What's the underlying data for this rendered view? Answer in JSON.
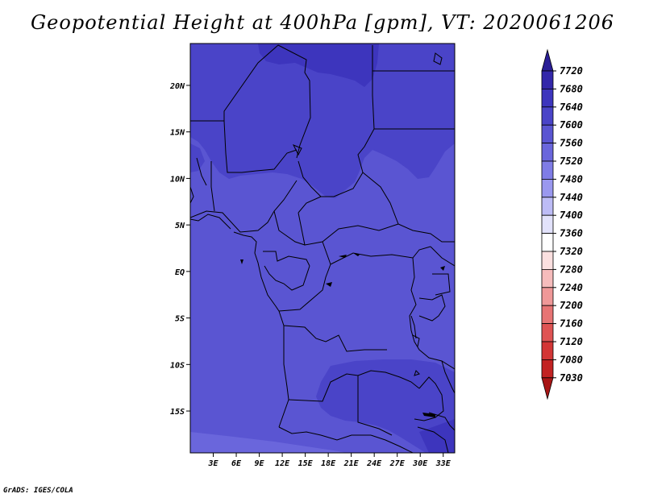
{
  "title": "Geopotential Height at 400hPa [gpm], VT: 2020061206",
  "credit": "GrADS: IGES/COLA",
  "map": {
    "lon_range": [
      0,
      34.5
    ],
    "lat_range": [
      -19.5,
      24.5
    ],
    "x_ticks": [
      {
        "value": 3,
        "label": "3E"
      },
      {
        "value": 6,
        "label": "6E"
      },
      {
        "value": 9,
        "label": "9E"
      },
      {
        "value": 12,
        "label": "12E"
      },
      {
        "value": 15,
        "label": "15E"
      },
      {
        "value": 18,
        "label": "18E"
      },
      {
        "value": 21,
        "label": "21E"
      },
      {
        "value": 24,
        "label": "24E"
      },
      {
        "value": 27,
        "label": "27E"
      },
      {
        "value": 30,
        "label": "30E"
      },
      {
        "value": 33,
        "label": "33E"
      }
    ],
    "y_ticks": [
      {
        "value": 20,
        "label": "20N"
      },
      {
        "value": 15,
        "label": "15N"
      },
      {
        "value": 10,
        "label": "10N"
      },
      {
        "value": 5,
        "label": "5N"
      },
      {
        "value": 0,
        "label": "EQ"
      },
      {
        "value": -5,
        "label": "5S"
      },
      {
        "value": -10,
        "label": "10S"
      },
      {
        "value": -15,
        "label": "15S"
      }
    ]
  },
  "colorbar": {
    "labels": [
      "7720",
      "7680",
      "7640",
      "7600",
      "7560",
      "7520",
      "7480",
      "7440",
      "7400",
      "7360",
      "7320",
      "7280",
      "7240",
      "7200",
      "7160",
      "7120",
      "7080",
      "7030"
    ],
    "colors": [
      "#2a1e96",
      "#3327aa",
      "#3d35bd",
      "#4a44c8",
      "#5a55d2",
      "#6a66dc",
      "#7f7ce6",
      "#9a98ef",
      "#bdbcf6",
      "#e2e2fb",
      "#ffffff",
      "#fbe0e0",
      "#f6bcbc",
      "#ef9898",
      "#e77474",
      "#df5353",
      "#d33636",
      "#c22222",
      "#a81515"
    ]
  },
  "colors": {
    "c7640": "#3d35bd",
    "c7600": "#4a44c8",
    "c7560": "#5a55d2",
    "c7520": "#6a66dc",
    "c7480": "#7f7ce6"
  }
}
